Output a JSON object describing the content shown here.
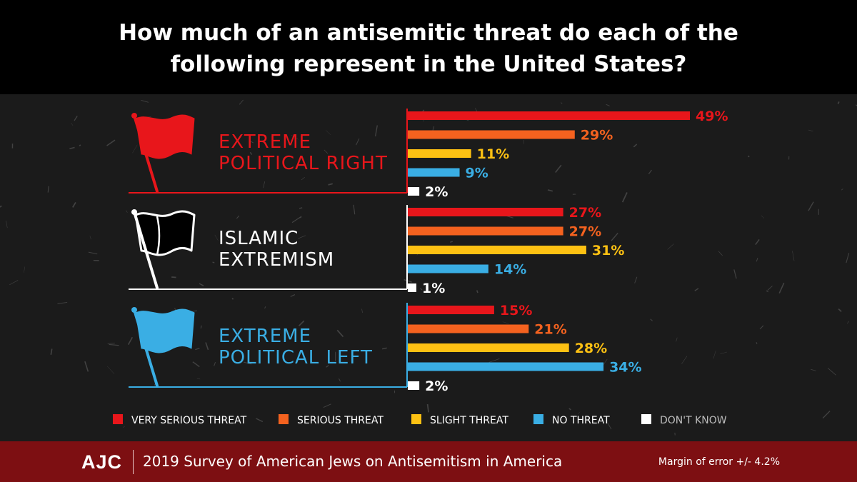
{
  "header": {
    "title_line1": "How much of an antisemitic threat do each of the",
    "title_line2": "following represent in the United States?"
  },
  "footer": {
    "brand": "AJC",
    "subtitle": "2019 Survey of American Jews on Antisemitism in America",
    "margin_of_error": "Margin of error +/- 4.2%"
  },
  "colors": {
    "very_serious": "#e8161b",
    "serious": "#f4621f",
    "slight": "#fdc113",
    "no_threat": "#3aaee4",
    "dont_know": "#ffffff",
    "background": "#1b1b1b",
    "footer_bg": "#7d0f12"
  },
  "chart_data": {
    "type": "bar",
    "orientation": "horizontal",
    "unit": "%",
    "value_range": [
      0,
      50
    ],
    "legend_placement": "bottom",
    "series": [
      {
        "name": "VERY SERIOUS THREAT",
        "color": "#e8161b"
      },
      {
        "name": "SERIOUS THREAT",
        "color": "#f4621f"
      },
      {
        "name": "SLIGHT THREAT",
        "color": "#fdc113"
      },
      {
        "name": "NO THREAT",
        "color": "#3aaee4"
      },
      {
        "name": "DON'T KNOW",
        "color": "#ffffff"
      }
    ],
    "groups": [
      {
        "label_line1": "EXTREME",
        "label_line2": "POLITICAL RIGHT",
        "color": "#e8161b",
        "flag_icon": "red-flag-icon",
        "values": [
          49,
          29,
          11,
          9,
          2
        ]
      },
      {
        "label_line1": "ISLAMIC",
        "label_line2": "EXTREMISM",
        "color": "#ffffff",
        "flag_icon": "black-flag-icon",
        "values": [
          27,
          27,
          31,
          14,
          1
        ]
      },
      {
        "label_line1": "EXTREME",
        "label_line2": "POLITICAL LEFT",
        "color": "#3aaee4",
        "flag_icon": "blue-flag-icon",
        "values": [
          15,
          21,
          28,
          34,
          2
        ]
      }
    ]
  }
}
